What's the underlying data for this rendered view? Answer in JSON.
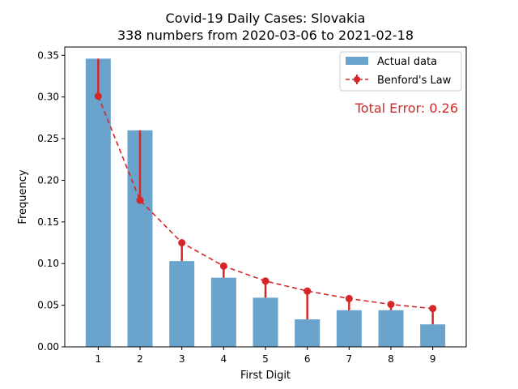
{
  "chart_data": {
    "type": "bar",
    "title": "Covid-19 Daily Cases: Slovakia",
    "subtitle": "338 numbers from 2020-03-06 to 2021-02-18",
    "xlabel": "First Digit",
    "ylabel": "Frequency",
    "categories": [
      "1",
      "2",
      "3",
      "4",
      "5",
      "6",
      "7",
      "8",
      "9"
    ],
    "ylim": [
      0,
      0.36
    ],
    "yticks": [
      0.0,
      0.05,
      0.1,
      0.15,
      0.2,
      0.25,
      0.3,
      0.35
    ],
    "ytick_labels": [
      "0.00",
      "0.05",
      "0.10",
      "0.15",
      "0.20",
      "0.25",
      "0.30",
      "0.35"
    ],
    "series": [
      {
        "name": "Actual data",
        "type": "bar",
        "color": "#6aa3cc",
        "values": [
          0.346,
          0.26,
          0.103,
          0.083,
          0.059,
          0.033,
          0.044,
          0.044,
          0.027
        ]
      },
      {
        "name": "Benford's Law",
        "type": "line",
        "color": "#d62728",
        "values": [
          0.301,
          0.176,
          0.125,
          0.097,
          0.079,
          0.067,
          0.058,
          0.051,
          0.046
        ]
      }
    ],
    "annotation": {
      "text": "Total Error: 0.26",
      "color": "#d62728"
    },
    "legend_position": "top-right",
    "grid": false
  }
}
